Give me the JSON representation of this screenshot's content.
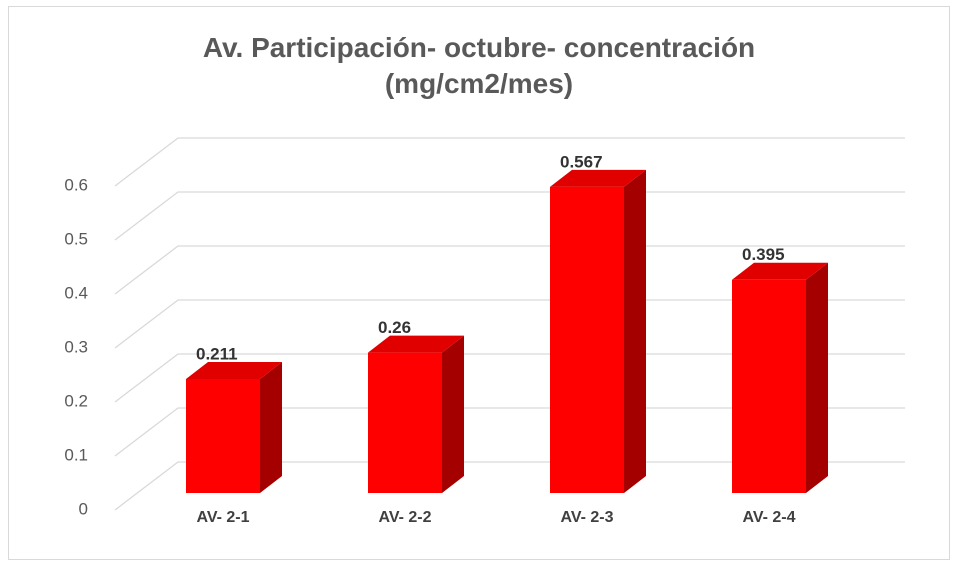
{
  "chart_data": {
    "type": "bar3d",
    "title": "Av. Participación- octubre- concentración (mg/cm2/mes)",
    "categories": [
      "AV- 2-1",
      "AV- 2-2",
      "AV- 2-3",
      "AV- 2-4"
    ],
    "values": [
      0.211,
      0.26,
      0.567,
      0.395
    ],
    "color": "#ff0000",
    "ylim": [
      0,
      0.6
    ],
    "yticks": [
      0,
      0.1,
      0.2,
      0.3,
      0.4,
      0.5,
      0.6
    ],
    "grid": true
  }
}
